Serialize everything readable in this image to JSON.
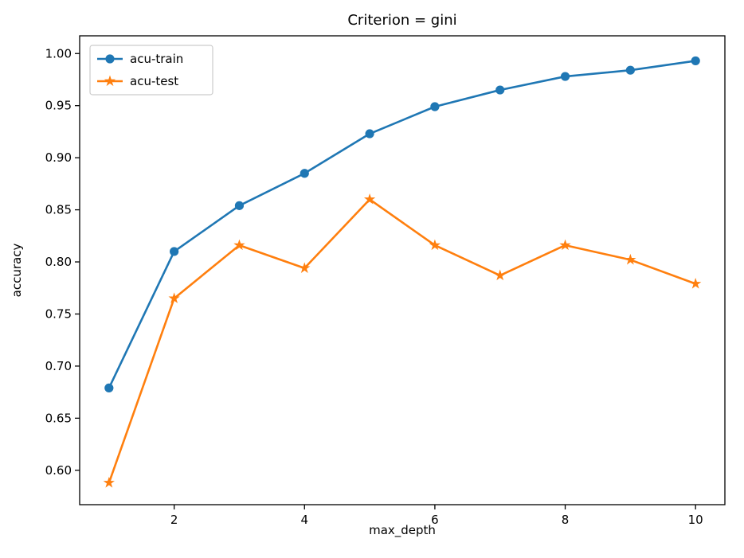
{
  "chart_data": {
    "type": "line",
    "title": "Criterion = gini",
    "xlabel": "max_depth",
    "ylabel": "accuracy",
    "x": [
      1,
      2,
      3,
      4,
      5,
      6,
      7,
      8,
      9,
      10
    ],
    "series": [
      {
        "name": "acu-train",
        "color": "#1f77b4",
        "marker": "circle",
        "values": [
          0.679,
          0.81,
          0.854,
          0.885,
          0.923,
          0.949,
          0.965,
          0.978,
          0.984,
          0.993
        ]
      },
      {
        "name": "acu-test",
        "color": "#ff7f0e",
        "marker": "star",
        "values": [
          0.588,
          0.765,
          0.816,
          0.794,
          0.86,
          0.816,
          0.787,
          0.816,
          0.802,
          0.779
        ]
      }
    ],
    "xticklabels": [
      "2",
      "4",
      "6",
      "8",
      "10"
    ],
    "yticklabels": [
      "0.60",
      "0.65",
      "0.70",
      "0.75",
      "0.80",
      "0.85",
      "0.90",
      "0.95",
      "1.00"
    ],
    "xlim": [
      0.55,
      10.45
    ],
    "ylim": [
      0.567,
      1.017
    ],
    "legend": {
      "position": "upper-left",
      "entries": [
        "acu-train",
        "acu-test"
      ]
    },
    "grid": false,
    "background": "#ffffff",
    "axis_color": "#000000"
  }
}
